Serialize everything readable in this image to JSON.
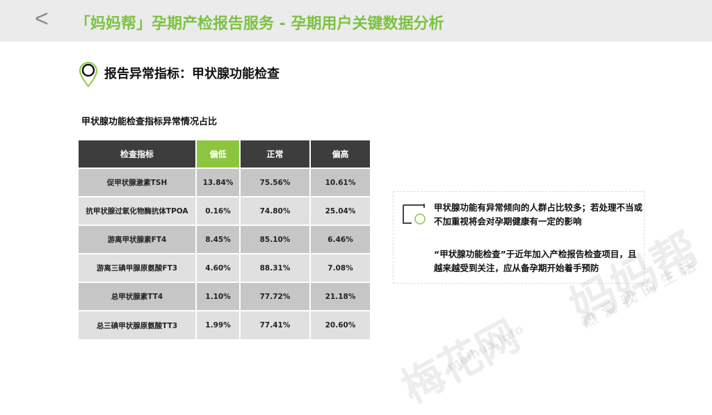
{
  "header": {
    "back_icon": "chevron-left-icon",
    "title": "「妈妈帮」孕期产检报告服务 - 孕期用户关键数据分析"
  },
  "section": {
    "icon": "location-pin-icon",
    "title": "报告异常指标：甲状腺功能检查"
  },
  "table": {
    "caption": "甲状腺功能检查指标异常情况占比",
    "headers": [
      "检查指标",
      "偏低",
      "正常",
      "偏高"
    ],
    "rows": [
      [
        "促甲状腺激素TSH",
        "13.84%",
        "75.56%",
        "10.61%"
      ],
      [
        "抗甲状腺过氧化物酶抗体TPOA",
        "0.16%",
        "74.80%",
        "25.04%"
      ],
      [
        "游离甲状腺素FT4",
        "8.45%",
        "85.10%",
        "6.46%"
      ],
      [
        "游离三碘甲腺原氨酸FT3",
        "4.60%",
        "88.31%",
        "7.08%"
      ],
      [
        "总甲状腺素TT4",
        "1.10%",
        "77.72%",
        "21.18%"
      ],
      [
        "总三碘甲状腺原氨酸TT3",
        "1.99%",
        "77.41%",
        "20.60%"
      ]
    ]
  },
  "callout": {
    "icon": "frame-circle-icon",
    "para1": "甲状腺功能有异常倾向的人群占比较多；若处理不当或不加重视将会对孕期健康有一定的影响",
    "para2": "“甲状腺功能检查”于近年加入产检报告检查项目，且越来越受到关注，应从备孕期开始着手预防"
  },
  "watermarks": {
    "meihua": "梅花网",
    "meihua_url": "meihua.info",
    "mamabang": "妈妈帮",
    "mamabang_slogan": "热爱我的生活"
  },
  "colors": {
    "accent": "#7dc242",
    "header_bg": "#ebebeb",
    "table_header": "#3d3d3d",
    "highlight": "#8cc63f"
  }
}
